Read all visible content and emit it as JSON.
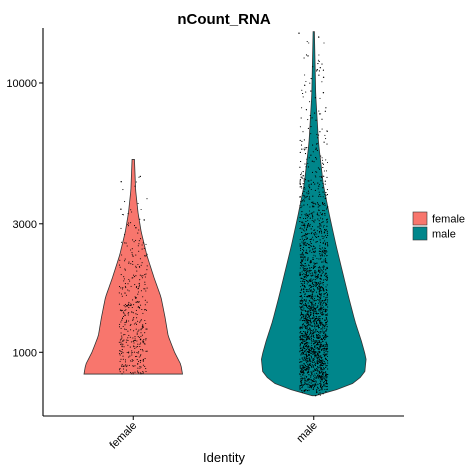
{
  "chart_data": {
    "type": "violin",
    "title": "nCount_RNA",
    "xlabel": "Identity",
    "ylabel": "",
    "y_scale": "log10",
    "ylim": [
      580,
      16000
    ],
    "y_ticks": [
      1000,
      3000,
      10000
    ],
    "y_tick_labels": [
      "1000",
      "3000",
      "10000"
    ],
    "categories": [
      "female",
      "male"
    ],
    "legend": {
      "position": "right",
      "entries": [
        {
          "label": "female",
          "color": "#F8766D"
        },
        {
          "label": "male",
          "color": "#00868B"
        }
      ]
    },
    "series": [
      {
        "name": "female",
        "color": "#F8766D",
        "y_min": 830,
        "y_max": 5200,
        "point_count": 400,
        "density_profile": [
          {
            "y": 830,
            "half_width": 0.62
          },
          {
            "y": 900,
            "half_width": 0.6
          },
          {
            "y": 1000,
            "half_width": 0.52
          },
          {
            "y": 1150,
            "half_width": 0.44
          },
          {
            "y": 1350,
            "half_width": 0.4
          },
          {
            "y": 1600,
            "half_width": 0.35
          },
          {
            "y": 1900,
            "half_width": 0.26
          },
          {
            "y": 2300,
            "half_width": 0.17
          },
          {
            "y": 2800,
            "half_width": 0.1
          },
          {
            "y": 3300,
            "half_width": 0.06
          },
          {
            "y": 4000,
            "half_width": 0.03
          },
          {
            "y": 5200,
            "half_width": 0.015
          }
        ],
        "outlier_points": [
          4500,
          4300,
          3400,
          3100,
          2900
        ]
      },
      {
        "name": "male",
        "color": "#00868B",
        "y_min": 690,
        "y_max": 15500,
        "point_count": 3000,
        "density_profile": [
          {
            "y": 690,
            "half_width": 0.02
          },
          {
            "y": 750,
            "half_width": 0.45
          },
          {
            "y": 830,
            "half_width": 0.64
          },
          {
            "y": 950,
            "half_width": 0.66
          },
          {
            "y": 1100,
            "half_width": 0.6
          },
          {
            "y": 1300,
            "half_width": 0.52
          },
          {
            "y": 1600,
            "half_width": 0.44
          },
          {
            "y": 2000,
            "half_width": 0.36
          },
          {
            "y": 2500,
            "half_width": 0.28
          },
          {
            "y": 3200,
            "half_width": 0.2
          },
          {
            "y": 4200,
            "half_width": 0.12
          },
          {
            "y": 6000,
            "half_width": 0.06
          },
          {
            "y": 9000,
            "half_width": 0.025
          },
          {
            "y": 15500,
            "half_width": 0.008
          }
        ],
        "outlier_points": [
          15300,
          14800,
          12600,
          11200,
          10500,
          9800,
          9200,
          720
        ]
      }
    ]
  }
}
